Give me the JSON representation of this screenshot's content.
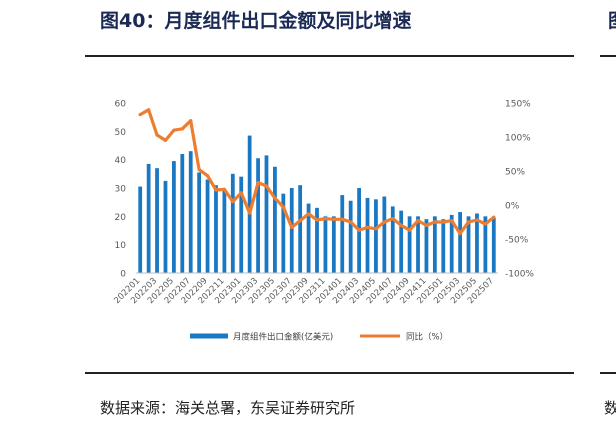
{
  "page": {
    "title": "图40：月度组件出口金额及同比增速",
    "source": "数据来源：海关总署，东吴证券研究所",
    "edge_title_char": "图",
    "edge_source_char": "数"
  },
  "chart_data": {
    "type": "bar",
    "categories": [
      "202201",
      "202202",
      "202203",
      "202204",
      "202205",
      "202206",
      "202207",
      "202208",
      "202209",
      "202210",
      "202211",
      "202212",
      "202301",
      "202302",
      "202303",
      "202304",
      "202305",
      "202306",
      "202307",
      "202308",
      "202309",
      "202310",
      "202311",
      "202312",
      "202401",
      "202402",
      "202403",
      "202404",
      "202405",
      "202406",
      "202407",
      "202408",
      "202409",
      "202410",
      "202411",
      "202412",
      "202501",
      "202502",
      "202503",
      "202504",
      "202505",
      "202506",
      "202507"
    ],
    "x_tick_labels": [
      "202201",
      "202203",
      "202205",
      "202207",
      "202209",
      "202211",
      "202301",
      "202303",
      "202305",
      "202307",
      "202309",
      "202311",
      "202401",
      "202403",
      "202405",
      "202407",
      "202409",
      "202411",
      "202501",
      "202503",
      "202505",
      "202507"
    ],
    "series": [
      {
        "name": "月度组件出口金额(亿美元)",
        "kind": "bar",
        "axis": "left",
        "color": "#1a78c2",
        "values": [
          30.5,
          38.5,
          37,
          32.5,
          39.5,
          42,
          43,
          35.5,
          33,
          31,
          29.5,
          35,
          34,
          48.5,
          40.5,
          41.5,
          37.5,
          28,
          30,
          31,
          24.5,
          23,
          20,
          20,
          27.5,
          25.5,
          30,
          26.5,
          26,
          27,
          23.5,
          22,
          20,
          20,
          19,
          20,
          19,
          20.5,
          21.5,
          20,
          21,
          20,
          19.5
        ]
      },
      {
        "name": "同比（%）",
        "kind": "line",
        "axis": "right",
        "color": "#ed7d31",
        "values": [
          133,
          140,
          103,
          95,
          110,
          112,
          124,
          52,
          43,
          22,
          23,
          5,
          18,
          -12,
          33,
          28,
          10,
          -3,
          -33,
          -23,
          -13,
          -22,
          -20,
          -21,
          -21,
          -25,
          -37,
          -33,
          -35,
          -25,
          -20,
          -30,
          -37,
          -23,
          -30,
          -25,
          -25,
          -23,
          -42,
          -25,
          -22,
          -28,
          -18
        ]
      }
    ],
    "y_left": {
      "min": 0,
      "max": 60,
      "ticks": [
        0,
        10,
        20,
        30,
        40,
        50,
        60
      ],
      "tick_labels": [
        "0",
        "10",
        "20",
        "30",
        "40",
        "50",
        "60"
      ]
    },
    "y_right": {
      "min": -100,
      "max": 150,
      "ticks": [
        -100,
        -50,
        0,
        50,
        100,
        150
      ],
      "tick_labels": [
        "-100%",
        "-50%",
        "0%",
        "50%",
        "100%",
        "150%"
      ]
    },
    "grid": false,
    "legend_position": "bottom"
  }
}
